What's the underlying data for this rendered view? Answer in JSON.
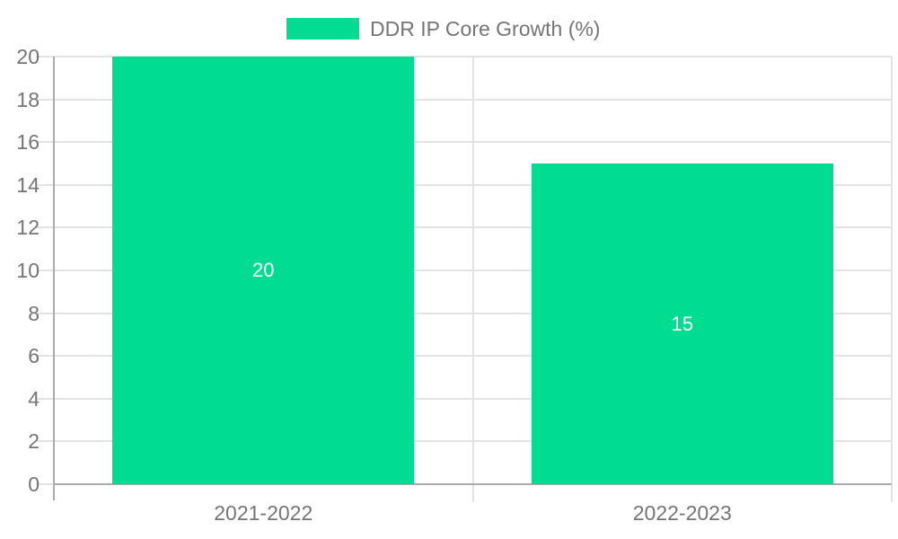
{
  "chart_data": {
    "type": "bar",
    "title": "DDR IP Core Growth (%)",
    "categories": [
      "2021-2022",
      "2022-2023"
    ],
    "values": [
      20,
      15
    ],
    "bar_value_labels": [
      "20",
      "15"
    ],
    "xlabel": "",
    "ylabel": "",
    "ylim": [
      0,
      20
    ],
    "yticks": [
      0,
      2,
      4,
      6,
      8,
      10,
      12,
      14,
      16,
      18,
      20
    ],
    "grid": true,
    "legend_position": "top",
    "colors": {
      "bar": "#00dc92",
      "bar_label": "#ffffff",
      "axis_text": "#757575",
      "axis_line": "#acacac",
      "gridline": "#e3e3e3",
      "background": "#ffffff"
    }
  }
}
